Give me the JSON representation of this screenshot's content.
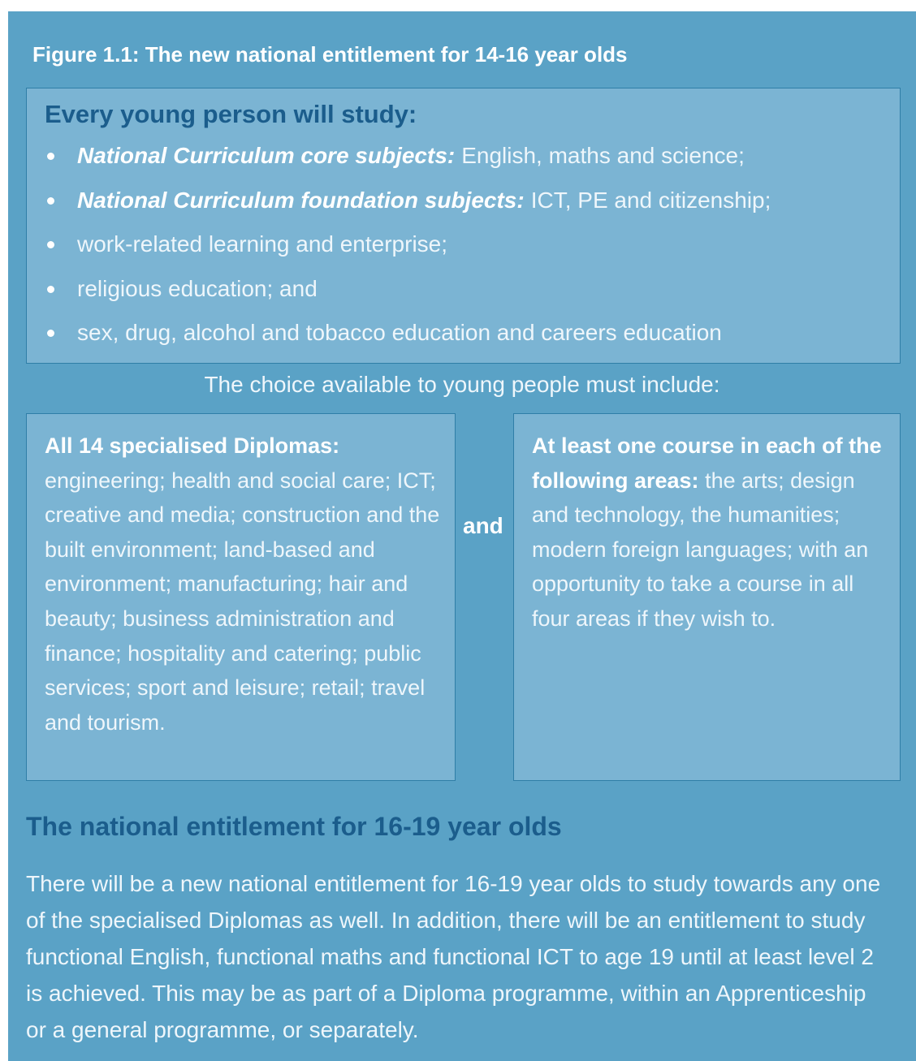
{
  "figure": {
    "title": "Figure 1.1: The new national entitlement for 14-16 year olds",
    "box": {
      "heading": "Every young person will study:",
      "items": [
        {
          "lead": "National Curriculum core subjects:",
          "text": "English, maths and science;"
        },
        {
          "lead": "National Curriculum foundation subjects:",
          "text": "ICT, PE and citizenship;"
        },
        {
          "text": "work-related learning and enterprise;"
        },
        {
          "text": "religious education; and"
        },
        {
          "text": "sex, drug, alcohol and tobacco education and careers education"
        }
      ]
    },
    "choice_intro": "The choice available to young people must include:",
    "diplomas": {
      "heading": "All 14 specialised Diplomas:",
      "text": "engineering; health and social care; ICT; creative and media; construction and the built environment; land-based and environment; manufacturing; hair and beauty; business administration and finance; hospitality and catering; public services; sport and leisure; retail; travel and tourism."
    },
    "connector": "and",
    "courses": {
      "heading": "At least one course in each of the following areas:",
      "text": "the arts; design and technology, the humanities; modern foreign languages; with an opportunity to take a course in all four areas if they wish to."
    }
  },
  "section": {
    "heading": "The national entitlement for 16-19 year olds",
    "paragraph": "There will be a new national entitlement for 16-19 year olds to study towards any one of the specialised Diplomas as well. In addition, there will be an entitlement to study functional English, functional maths and functional ICT to age 19 until at least level 2 is achieved. This may be as part of a Diploma programme, within an Apprenticeship or a general programme, or separately."
  }
}
